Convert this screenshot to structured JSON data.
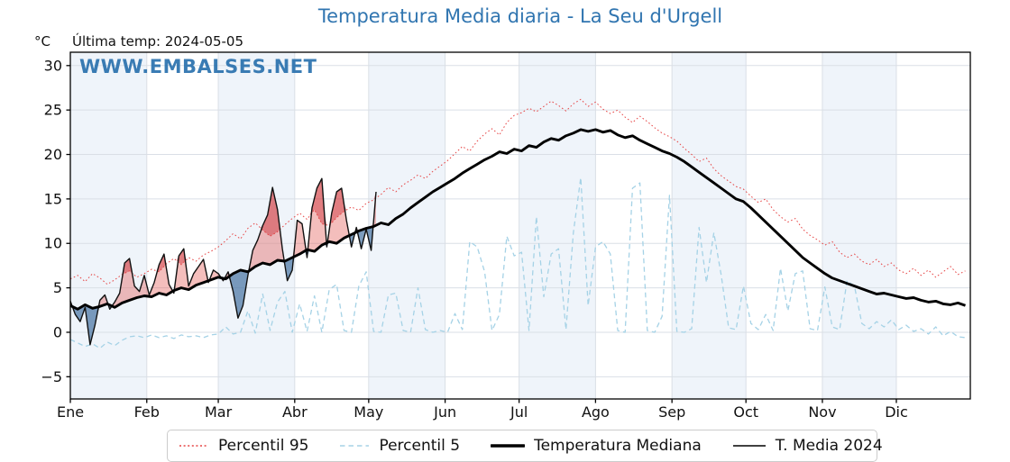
{
  "page": {
    "title": "Temperatura Media diaria - La Seu d'Urgell",
    "subtitle": "Última temp: 2024-05-05",
    "unit": "°C",
    "watermark": "WWW.EMBALSES.NET"
  },
  "chart_data": {
    "type": "line",
    "title": "Temperatura Media diaria - La Seu d'Urgell",
    "subtitle": "Última temp: 2024-05-05",
    "ylabel": "°C",
    "ylim": [
      -7.5,
      31.5
    ],
    "days_in_year": 366,
    "grid": true,
    "legend_position": "bottom",
    "x_ticklabels": [
      "Ene",
      "Feb",
      "Mar",
      "Abr",
      "May",
      "Jun",
      "Jul",
      "Ago",
      "Sep",
      "Oct",
      "Nov",
      "Dic"
    ],
    "month_start_days": [
      1,
      32,
      61,
      92,
      122,
      153,
      183,
      214,
      245,
      275,
      306,
      336
    ],
    "y_ticks": [
      -5,
      0,
      5,
      10,
      15,
      20,
      25,
      30
    ],
    "y_ticklabels": [
      "−5",
      "0",
      "5",
      "10",
      "15",
      "20",
      "25",
      "30"
    ],
    "colors": {
      "title_blue": "#3075b0",
      "band": "#eff4fa",
      "grid": "#dadfe6",
      "frame": "#000000",
      "p95_red": "#e64545",
      "p5_blue": "#a5d2e6",
      "mediana_black": "#000000",
      "t2024_black": "#111111",
      "fill_above": "rgba(225,85,80,0.38)",
      "fill_above_p95": "rgba(200,30,40,0.40)",
      "fill_below": "rgba(55,105,155,0.65)"
    },
    "series": [
      {
        "name": "Percentil 95",
        "key": "p95",
        "style": "dotted",
        "width": 1,
        "start_day": 1,
        "step": 3,
        "values": [
          6.0,
          6.4,
          5.7,
          6.6,
          6.1,
          5.4,
          5.9,
          6.5,
          6.9,
          6.2,
          6.6,
          7.1,
          6.8,
          7.7,
          8.3,
          7.6,
          8.4,
          8.0,
          8.7,
          9.1,
          9.6,
          10.3,
          11.1,
          10.5,
          11.7,
          12.3,
          11.5,
          10.8,
          11.3,
          12.1,
          12.8,
          13.4,
          12.7,
          13.8,
          12.2,
          12.0,
          12.9,
          13.6,
          14.1,
          13.7,
          14.5,
          14.9,
          15.5,
          16.3,
          15.8,
          16.6,
          17.1,
          17.7,
          17.3,
          18.1,
          18.7,
          19.3,
          20.1,
          20.9,
          20.4,
          21.5,
          22.3,
          22.9,
          22.2,
          23.6,
          24.4,
          24.7,
          25.2,
          24.8,
          25.4,
          26.0,
          25.5,
          24.9,
          25.7,
          26.2,
          25.4,
          25.9,
          25.1,
          24.6,
          25.0,
          24.2,
          23.6,
          24.3,
          23.7,
          23.0,
          22.4,
          22.0,
          21.5,
          20.7,
          20.0,
          19.2,
          19.6,
          18.4,
          17.6,
          17.0,
          16.4,
          16.1,
          15.3,
          14.6,
          15.0,
          13.8,
          13.0,
          12.4,
          12.8,
          11.6,
          10.9,
          10.4,
          9.8,
          10.2,
          9.0,
          8.4,
          8.8,
          8.0,
          7.6,
          8.2,
          7.4,
          7.8,
          7.0,
          6.6,
          7.2,
          6.4,
          7.0,
          6.2,
          6.8,
          7.4,
          6.5,
          6.9
        ]
      },
      {
        "name": "Percentil 5",
        "key": "p5",
        "style": "dashed",
        "width": 1.3,
        "start_day": 1,
        "step": 3,
        "values": [
          -0.8,
          -1.2,
          -1.6,
          -1.3,
          -1.8,
          -1.1,
          -1.5,
          -0.9,
          -0.5,
          -0.4,
          -0.6,
          -0.3,
          -0.6,
          -0.4,
          -0.7,
          -0.3,
          -0.5,
          -0.4,
          -0.6,
          -0.3,
          -0.2,
          0.6,
          -0.2,
          0.0,
          2.4,
          -0.1,
          4.3,
          0.2,
          3.4,
          4.6,
          0.0,
          3.2,
          0.1,
          4.1,
          0.0,
          4.8,
          5.4,
          0.2,
          0.0,
          5.2,
          6.8,
          0.1,
          0.0,
          4.2,
          4.4,
          0.2,
          0.0,
          5.0,
          0.3,
          0.0,
          0.2,
          0.0,
          2.1,
          0.3,
          10.2,
          9.6,
          6.8,
          0.2,
          2.0,
          10.8,
          8.6,
          9.0,
          0.2,
          13.0,
          4.0,
          8.8,
          9.4,
          0.3,
          11.2,
          17.4,
          3.0,
          9.6,
          10.2,
          8.8,
          0.2,
          0.0,
          16.2,
          16.8,
          0.2,
          0.0,
          1.8,
          15.4,
          0.1,
          0.0,
          0.4,
          11.8,
          5.6,
          11.2,
          6.4,
          0.5,
          0.3,
          5.2,
          1.0,
          0.3,
          2.0,
          0.2,
          7.2,
          2.4,
          6.6,
          6.9,
          0.4,
          0.2,
          5.1,
          0.6,
          0.3,
          5.8,
          5.2,
          1.0,
          0.4,
          1.2,
          0.6,
          1.4,
          0.3,
          0.8,
          0.1,
          0.4,
          -0.2,
          0.6,
          -0.4,
          0.1,
          -0.5,
          -0.6
        ]
      },
      {
        "name": "Temperatura Mediana",
        "key": "mediana",
        "style": "solid",
        "width": 2.9,
        "start_day": 1,
        "step": 3,
        "values": [
          3.0,
          2.6,
          3.1,
          2.7,
          2.9,
          3.2,
          2.8,
          3.3,
          3.6,
          3.9,
          4.1,
          4.0,
          4.4,
          4.2,
          4.7,
          5.0,
          4.8,
          5.3,
          5.6,
          5.9,
          6.2,
          6.0,
          6.6,
          7.0,
          6.8,
          7.4,
          7.8,
          7.6,
          8.1,
          8.0,
          8.4,
          8.8,
          9.3,
          9.1,
          9.8,
          10.2,
          10.0,
          10.6,
          11.0,
          11.4,
          11.7,
          11.9,
          12.3,
          12.1,
          12.8,
          13.3,
          14.0,
          14.6,
          15.2,
          15.8,
          16.3,
          16.8,
          17.3,
          17.9,
          18.4,
          18.9,
          19.4,
          19.8,
          20.3,
          20.1,
          20.6,
          20.4,
          21.0,
          20.8,
          21.4,
          21.8,
          21.6,
          22.1,
          22.4,
          22.8,
          22.6,
          22.8,
          22.5,
          22.7,
          22.2,
          21.9,
          22.1,
          21.6,
          21.2,
          20.8,
          20.4,
          20.1,
          19.7,
          19.2,
          18.6,
          18.0,
          17.4,
          16.8,
          16.2,
          15.6,
          15.0,
          14.7,
          14.0,
          13.2,
          12.4,
          11.6,
          10.8,
          10.0,
          9.2,
          8.4,
          7.8,
          7.2,
          6.6,
          6.1,
          5.8,
          5.5,
          5.2,
          4.9,
          4.6,
          4.3,
          4.4,
          4.2,
          4.0,
          3.8,
          3.9,
          3.6,
          3.4,
          3.5,
          3.2,
          3.1,
          3.3,
          3.0
        ]
      },
      {
        "name": "T. Media 2024",
        "key": "t2024",
        "style": "solid",
        "width": 1.4,
        "start_day": 1,
        "step": 2,
        "values": [
          3.5,
          2.0,
          1.2,
          2.8,
          -1.4,
          0.8,
          3.6,
          4.2,
          2.6,
          3.4,
          4.4,
          7.8,
          8.3,
          5.2,
          4.6,
          6.4,
          4.2,
          5.6,
          7.6,
          8.8,
          5.4,
          4.4,
          8.6,
          9.4,
          5.2,
          6.6,
          7.4,
          8.2,
          5.6,
          7.0,
          6.6,
          5.8,
          6.8,
          4.6,
          1.6,
          3.0,
          6.4,
          9.2,
          10.4,
          12.0,
          13.2,
          16.3,
          13.8,
          9.4,
          5.8,
          7.0,
          12.6,
          12.2,
          8.4,
          14.0,
          16.2,
          17.3,
          9.6,
          13.4,
          15.8,
          16.2,
          12.6,
          9.6,
          11.8,
          9.4,
          11.6,
          9.2,
          15.8
        ]
      }
    ],
    "legend": [
      {
        "label": "Percentil 95",
        "swatch": "dotted-red"
      },
      {
        "label": "Percentil 5",
        "swatch": "dashed-lightblue"
      },
      {
        "label": "Temperatura Mediana",
        "swatch": "thick-black"
      },
      {
        "label": "T. Media 2024",
        "swatch": "thin-black"
      }
    ]
  }
}
